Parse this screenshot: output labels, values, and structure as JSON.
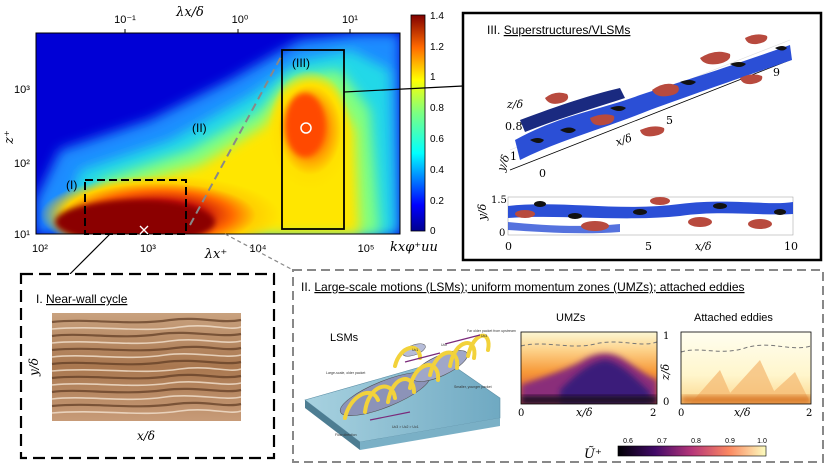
{
  "spectrogram": {
    "top_axis_label": "λx/δ",
    "top_ticks": [
      "10⁻¹",
      "10⁰",
      "10¹"
    ],
    "y_axis_label": "z⁺",
    "y_ticks": [
      "10³",
      "10²",
      "10¹"
    ],
    "x_ticks": [
      "10²",
      "10³",
      "10⁴",
      "10⁵"
    ],
    "x_axis_label": "λx⁺",
    "colorbar_label": "kxφ⁺uu",
    "colorbar_ticks": [
      "1.4",
      "1.2",
      "1",
      "0.8",
      "0.6",
      "0.4",
      "0.2",
      "0"
    ],
    "colorbar_range": [
      0,
      1.4
    ],
    "region_labels": [
      "(I)",
      "(II)",
      "(III)"
    ]
  },
  "panel_I": {
    "title_prefix": "I.",
    "title": "Near-wall cycle",
    "y_label": "y/δ",
    "x_label": "x/δ"
  },
  "panel_II": {
    "title_prefix": "II.",
    "title": "Large-scale motions (LSMs); uniform momentum zones (UMZs); attached eddies",
    "lsm_label": "LSMs",
    "umz_label": "UMZs",
    "attached_label": "Attached eddies",
    "schematic_text": {
      "far_older": "Far older packet from upstream",
      "large_scale": "Large-scale, older packet",
      "smaller": "Smaller, younger packet",
      "flow_direction": "Flow direction",
      "convect": "Uc3 > Uc2 > Uc1",
      "uc1": "Uc1",
      "uc2": "Uc2",
      "uc3": "Uc3"
    },
    "umz_axes": {
      "x_label": "x/δ",
      "z_label": "z/δ",
      "x_ticks": [
        "0",
        "2"
      ],
      "z_ticks": [
        "1",
        "0"
      ]
    },
    "attached_axes": {
      "x_label": "x/δ",
      "x_ticks": [
        "0",
        "2"
      ]
    },
    "colorbar": {
      "label": "Ũ⁺",
      "ticks": [
        "0.6",
        "0.7",
        "0.8",
        "0.9",
        "1.0"
      ]
    }
  },
  "panel_III": {
    "title_prefix": "III.",
    "title": "Superstructures/VLSMs",
    "upper": {
      "z_label": "z/δ",
      "z_tick": "0.8",
      "x_label": "x/δ",
      "y_label": "y/δ",
      "y_ticks": [
        "1",
        "0"
      ],
      "x_ticks": [
        "5",
        "9"
      ]
    },
    "lower": {
      "y_label": "y/δ",
      "y_ticks": [
        "1.5",
        "0"
      ],
      "x_label": "x/δ",
      "x_ticks": [
        "0",
        "5",
        "10"
      ]
    }
  }
}
